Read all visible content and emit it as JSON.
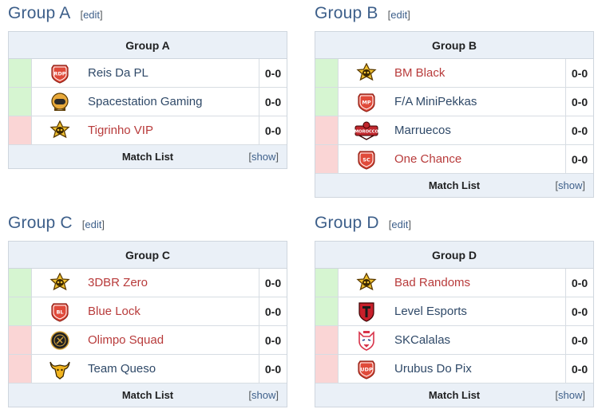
{
  "edit_label": "edit",
  "match_list_label": "Match List",
  "show_label": "show",
  "score_label": "0-0",
  "groups": [
    {
      "id": "group-a",
      "title": "Group A",
      "table_title": "Group A",
      "teams": [
        {
          "name": "Reis Da PL",
          "logo_text": "RDP",
          "logo": "shield-logo",
          "logo_color": "#e04a3a",
          "status": "up",
          "linked": false
        },
        {
          "name": "Spacestation Gaming",
          "logo_text": "",
          "logo": "astronaut-logo",
          "logo_color": "#e8a93b",
          "status": "up",
          "linked": false
        },
        {
          "name": "Tigrinho VIP",
          "logo_text": "",
          "logo": "skull-star-logo",
          "logo_color": "#f2c230",
          "status": "down",
          "linked": true
        }
      ]
    },
    {
      "id": "group-b",
      "title": "Group B",
      "table_title": "Group B",
      "teams": [
        {
          "name": "BM Black",
          "logo_text": "",
          "logo": "skull-star-logo",
          "logo_color": "#f2c230",
          "status": "up",
          "linked": true
        },
        {
          "name": "F/A MiniPekkas",
          "logo_text": "MP",
          "logo": "shield-logo",
          "logo_color": "#e04a3a",
          "status": "up",
          "linked": false
        },
        {
          "name": "Marruecos",
          "logo_text": "MOROCCO",
          "logo": "banner-logo",
          "logo_color": "#c0272d",
          "status": "down",
          "linked": false
        },
        {
          "name": "One Chance",
          "logo_text": "SC",
          "logo": "shield-logo",
          "logo_color": "#e04a3a",
          "status": "down",
          "linked": true
        }
      ]
    },
    {
      "id": "group-c",
      "title": "Group C",
      "table_title": "Group C",
      "teams": [
        {
          "name": "3DBR Zero",
          "logo_text": "",
          "logo": "skull-star-logo",
          "logo_color": "#f2c230",
          "status": "up",
          "linked": true
        },
        {
          "name": "Blue Lock",
          "logo_text": "BL",
          "logo": "shield-logo",
          "logo_color": "#e04a3a",
          "status": "up",
          "linked": true
        },
        {
          "name": "Olimpo Squad",
          "logo_text": "",
          "logo": "round-emblem-logo",
          "logo_color": "#222222",
          "status": "down",
          "linked": true
        },
        {
          "name": "Team Queso",
          "logo_text": "",
          "logo": "bull-logo",
          "logo_color": "#f2b51f",
          "status": "down",
          "linked": false
        }
      ]
    },
    {
      "id": "group-d",
      "title": "Group D",
      "table_title": "Group D",
      "teams": [
        {
          "name": "Bad Randoms",
          "logo_text": "",
          "logo": "skull-star-logo",
          "logo_color": "#f2c230",
          "status": "up",
          "linked": true
        },
        {
          "name": "Level Esports",
          "logo_text": "",
          "logo": "level-shield-logo",
          "logo_color": "#c8202b",
          "status": "up",
          "linked": false
        },
        {
          "name": "SKCalalas",
          "logo_text": "",
          "logo": "wolf-logo",
          "logo_color": "#d8334a",
          "status": "down",
          "linked": false
        },
        {
          "name": "Urubus Do Pix",
          "logo_text": "UDP",
          "logo": "shield-logo",
          "logo_color": "#e04a3a",
          "status": "down",
          "linked": false
        }
      ]
    }
  ]
}
